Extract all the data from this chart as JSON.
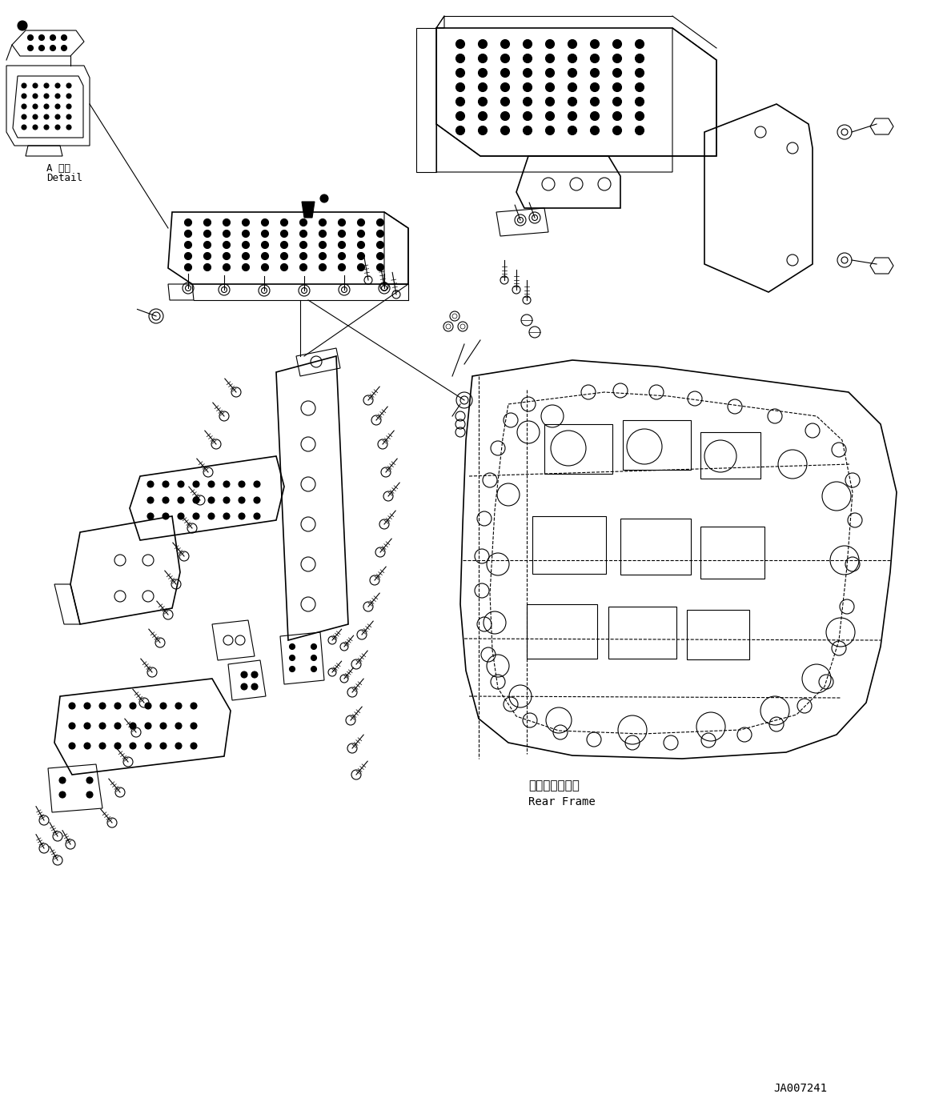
{
  "background_color": "#ffffff",
  "line_color": "#000000",
  "fig_width": 11.63,
  "fig_height": 13.92,
  "dpi": 100,
  "label_a_detail_line1": "A 詳細",
  "label_a_detail_line2": "Detail",
  "label_rear_frame_jp": "リヤーフレーム",
  "label_rear_frame_en": "Rear Frame",
  "drawing_id": "JA007241"
}
